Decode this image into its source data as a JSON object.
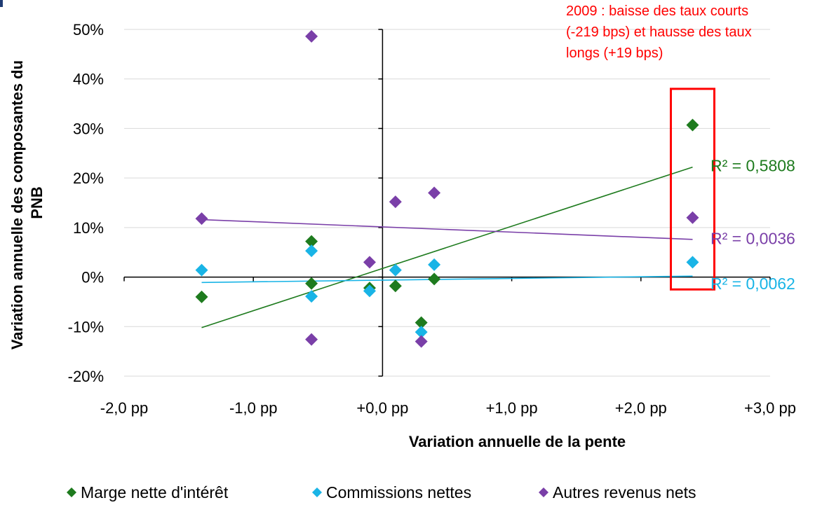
{
  "chart_data": {
    "type": "scatter",
    "xlabel": "Variation annuelle de la pente",
    "ylabel_lines": [
      "Variation annuelle des composantes du",
      "PNB"
    ],
    "xlim": [
      -2.0,
      3.0
    ],
    "ylim": [
      -20,
      50
    ],
    "x_ticks": [
      -2,
      -1,
      0,
      1,
      2,
      3
    ],
    "x_tick_labels": [
      "-2,0 pp",
      "-1,0 pp",
      "+0,0 pp",
      "+1,0 pp",
      "+2,0 pp",
      "+3,0 pp"
    ],
    "y_ticks": [
      -20,
      -10,
      0,
      10,
      20,
      30,
      40,
      50
    ],
    "y_tick_labels": [
      "-20%",
      "-10%",
      "0%",
      "10%",
      "20%",
      "30%",
      "40%",
      "50%"
    ],
    "grid": "horizontal",
    "legend_position": "bottom",
    "annotation": {
      "lines": [
        "2009 : baisse des taux courts",
        "(-219 bps) et hausse des taux",
        "longs (+19 bps)"
      ],
      "color": "#ff0000",
      "highlight_x": 2.4,
      "highlight_ylim": [
        -2.5,
        38
      ]
    },
    "series": [
      {
        "name": "Marge nette d'intérêt",
        "color": "#1e7b1e",
        "marker": "diamond",
        "points": [
          [
            -1.4,
            -4.0
          ],
          [
            -0.55,
            7.2
          ],
          [
            -0.55,
            -1.3
          ],
          [
            -0.1,
            -2.2
          ],
          [
            0.1,
            -1.8
          ],
          [
            0.3,
            -9.2
          ],
          [
            0.4,
            -0.4
          ],
          [
            2.4,
            30.7
          ]
        ],
        "trendline": {
          "x": [
            -1.4,
            2.4
          ],
          "y": [
            -10.2,
            22.2
          ]
        },
        "r2_label": "R² = 0,5808"
      },
      {
        "name": "Commissions nettes",
        "color": "#19b4e6",
        "marker": "diamond",
        "points": [
          [
            -1.4,
            1.4
          ],
          [
            -0.55,
            5.3
          ],
          [
            -0.55,
            -3.9
          ],
          [
            -0.1,
            -2.8
          ],
          [
            0.1,
            1.4
          ],
          [
            0.3,
            -11.1
          ],
          [
            0.4,
            2.5
          ],
          [
            2.4,
            3.0
          ]
        ],
        "trendline": {
          "x": [
            -1.4,
            2.4
          ],
          "y": [
            -1.1,
            0.2
          ]
        },
        "r2_label": "R² = 0,0062"
      },
      {
        "name": "Autres revenus nets",
        "color": "#7a3fa8",
        "marker": "diamond",
        "points": [
          [
            -1.4,
            11.8
          ],
          [
            -0.55,
            48.6
          ],
          [
            -0.55,
            -12.6
          ],
          [
            -0.1,
            3.0
          ],
          [
            0.1,
            15.2
          ],
          [
            0.3,
            -13.0
          ],
          [
            0.4,
            17.0
          ],
          [
            2.4,
            12.0
          ]
        ],
        "trendline": {
          "x": [
            -1.4,
            2.4
          ],
          "y": [
            11.6,
            7.6
          ]
        },
        "r2_label": "R² = 0,0036"
      }
    ]
  }
}
